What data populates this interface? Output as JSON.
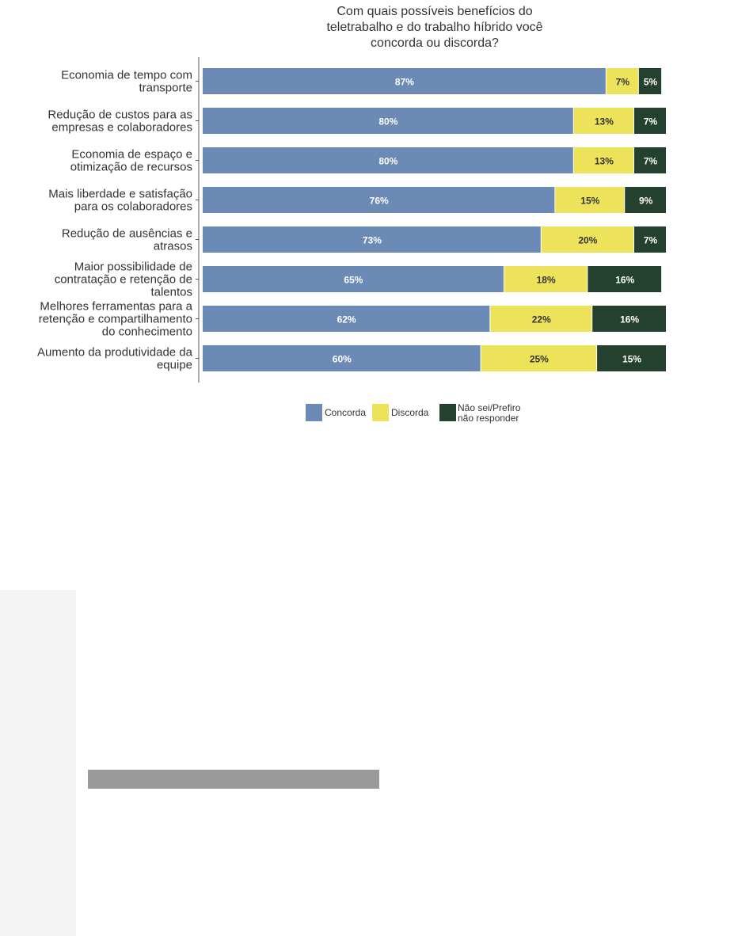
{
  "chart_data": {
    "type": "bar",
    "orientation": "horizontal",
    "stacked": true,
    "title": "Com quais possíveis benefícios do teletrabalho e do trabalho híbrido você concorda ou discorda?",
    "title_lines": [
      "Com quais possíveis benefícios do",
      "teletrabalho e do trabalho híbrido você",
      "concorda ou discorda?"
    ],
    "categories": [
      "Economia de tempo com transporte",
      "Redução de custos para as empresas e colaboradores",
      "Economia de espaço e otimização de recursos",
      "Mais liberdade e satisfação para os colaboradores",
      "Redução de ausências e atrasos",
      "Maior possibilidade de contratação e retenção de talentos",
      "Melhores ferramentas para a retenção e compartilhamento do conhecimento",
      "Aumento da produtividade da equipe"
    ],
    "category_lines": [
      [
        "Economia de tempo com",
        "transporte"
      ],
      [
        "Redução de custos para as",
        "empresas e colaboradores"
      ],
      [
        "Economia de espaço e",
        "otimização de recursos"
      ],
      [
        "Mais liberdade e satisfação",
        "para os colaboradores"
      ],
      [
        "Redução de ausências e",
        "atrasos"
      ],
      [
        "Maior possibilidade de",
        "contratação e retenção de",
        "talentos"
      ],
      [
        "Melhores ferramentas para a",
        "retenção e compartilhamento",
        "do conhecimento"
      ],
      [
        "Aumento da produtividade da",
        "equipe"
      ]
    ],
    "series": [
      {
        "name": "Concorda",
        "color": "#6b8ab5",
        "label_color": "#ffffff",
        "values": [
          87,
          80,
          80,
          76,
          73,
          65,
          62,
          60
        ]
      },
      {
        "name": "Discorda",
        "color": "#ede35b",
        "label_color": "#333333",
        "values": [
          7,
          13,
          13,
          15,
          20,
          18,
          22,
          25
        ]
      },
      {
        "name": "Não sei/Prefiro não responder",
        "legend_lines": [
          "Não sei/Prefiro",
          "não responder"
        ],
        "color": "#24402f",
        "label_color": "#ffffff",
        "values": [
          5,
          7,
          7,
          9,
          7,
          16,
          16,
          15
        ]
      }
    ],
    "xlim": [
      0,
      100
    ],
    "value_suffix": "%",
    "legend_position": "bottom"
  }
}
